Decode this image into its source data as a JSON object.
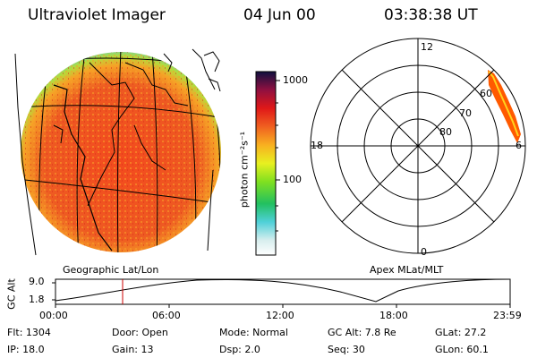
{
  "header": {
    "instrument": "Ultraviolet Imager",
    "date": "04 Jun 00",
    "time": "03:38:38 UT"
  },
  "colorbar": {
    "unit_label": "photon cm⁻²s⁻¹",
    "tick_1000": "1000",
    "tick_100": "100"
  },
  "polar": {
    "mlt_top": "12",
    "mlt_left": "18",
    "mlt_right": "6",
    "mlt_bottom": "0",
    "lat_60": "60",
    "lat_70": "70",
    "lat_80": "80"
  },
  "labels": {
    "left_caption": "Geographic Lat/Lon",
    "right_caption": "Apex MLat/MLT"
  },
  "timeline": {
    "axis_label": "GC Alt",
    "y_max_label": "9.0",
    "y_min_label": "1.8",
    "ticks": [
      "00:00",
      "06:00",
      "12:00",
      "18:00",
      "23:59"
    ]
  },
  "footer": {
    "flt": "Flt: 1304",
    "door": "Door: Open",
    "mode": "Mode: Normal",
    "gc_alt": "GC Alt: 7.8 Re",
    "glat": "GLat:  27.2",
    "ip": "IP: 18.0",
    "gain": "Gain: 13",
    "dsp": "Dsp:     2.0",
    "seq": "Seq: 30",
    "glon": "GLon:  60.1"
  },
  "colors": {
    "image_fill": "#ee5022",
    "aurora_fill": "#ff5a00",
    "marker": "#cc0000"
  }
}
